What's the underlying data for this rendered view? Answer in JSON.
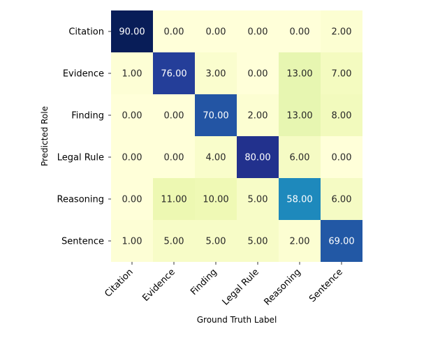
{
  "chart_data": {
    "type": "heatmap",
    "xlabel": "Ground Truth Label",
    "ylabel": "Predicted Role",
    "x_categories": [
      "Citation",
      "Evidence",
      "Finding",
      "Legal Rule",
      "Reasoning",
      "Sentence"
    ],
    "y_categories": [
      "Citation",
      "Evidence",
      "Finding",
      "Legal Rule",
      "Reasoning",
      "Sentence"
    ],
    "values": [
      [
        90,
        0,
        0,
        0,
        0,
        2
      ],
      [
        1,
        76,
        3,
        0,
        13,
        7
      ],
      [
        0,
        0,
        70,
        2,
        13,
        8
      ],
      [
        0,
        0,
        4,
        80,
        6,
        0
      ],
      [
        0,
        11,
        10,
        5,
        58,
        6
      ],
      [
        1,
        5,
        5,
        5,
        2,
        69
      ]
    ],
    "value_format": "2 decimals",
    "colormap": "YlGnBu",
    "colorbar": false,
    "color_range": [
      0,
      90
    ]
  }
}
